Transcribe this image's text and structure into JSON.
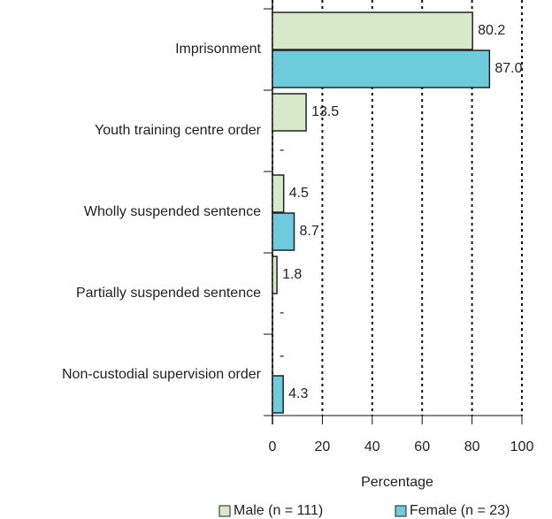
{
  "chart_data": {
    "type": "bar",
    "orientation": "horizontal",
    "categories": [
      "Imprisonment",
      "Youth training centre order",
      "Wholly suspended sentence",
      "Partially suspended sentence",
      "Non-custodial supervision order"
    ],
    "series": [
      {
        "name": "Male (n = 111)",
        "color": "#d6e9c9",
        "values": [
          80.2,
          13.5,
          4.5,
          1.8,
          null
        ],
        "value_labels": [
          "80.2",
          "13.5",
          "4.5",
          "1.8",
          "-"
        ]
      },
      {
        "name": "Female (n = 23)",
        "color": "#6ecbdc",
        "values": [
          87.0,
          null,
          8.7,
          null,
          4.3
        ],
        "value_labels": [
          "87.0",
          "-",
          "8.7",
          "-",
          "4.3"
        ]
      }
    ],
    "xlabel": "Percentage",
    "xlim": [
      0,
      100
    ],
    "xticks": [
      0,
      20,
      40,
      60,
      80,
      100
    ],
    "grid": true,
    "legend": "bottom"
  }
}
